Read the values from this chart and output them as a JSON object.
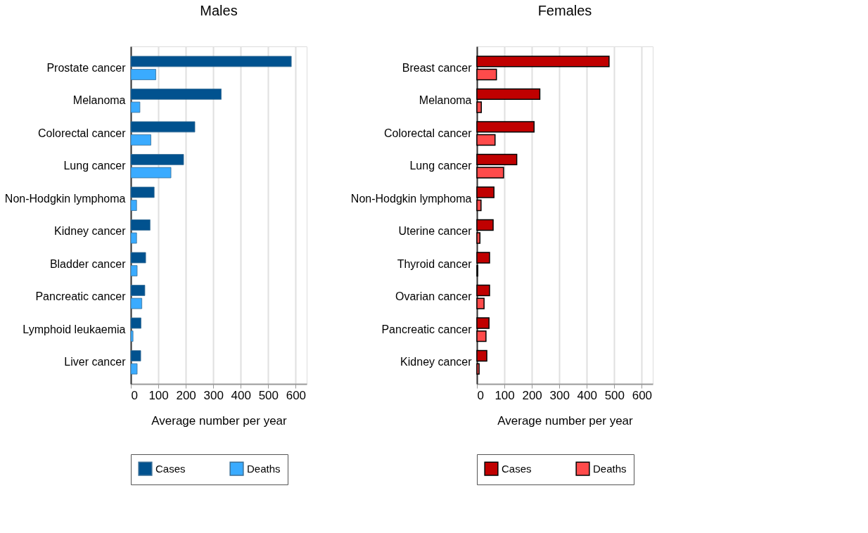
{
  "chart_data": [
    {
      "type": "bar",
      "title": "Males",
      "orientation": "horizontal",
      "xlabel": "Average number per year",
      "categories": [
        "Prostate cancer",
        "Melanoma",
        "Colorectal cancer",
        "Lung cancer",
        "Non-Hodgkin lymphoma",
        "Kidney cancer",
        "Bladder cancer",
        "Pancreatic cancer",
        "Lymphoid leukaemia",
        "Liver cancer"
      ],
      "series": [
        {
          "name": "Cases",
          "color": "#01528f",
          "values": [
            584,
            329,
            233,
            192,
            85,
            70,
            54,
            51,
            37,
            36
          ]
        },
        {
          "name": "Deaths",
          "color": "#3aabff",
          "values": [
            91,
            33,
            73,
            146,
            21,
            21,
            23,
            40,
            8,
            23
          ]
        }
      ],
      "xlim": [
        0,
        640
      ],
      "xticks": [
        0,
        100,
        200,
        300,
        400,
        500,
        600
      ],
      "grid": "x",
      "legend": "bottom"
    },
    {
      "type": "bar",
      "title": "Females",
      "orientation": "horizontal",
      "xlabel": "Average number per year",
      "categories": [
        "Breast cancer",
        "Melanoma",
        "Colorectal cancer",
        "Lung cancer",
        "Non-Hodgkin lymphoma",
        "Uterine cancer",
        "Thyroid cancer",
        "Ovarian cancer",
        "Pancreatic cancer",
        "Kidney cancer"
      ],
      "series": [
        {
          "name": "Cases",
          "color": "#c00000",
          "values": [
            481,
            229,
            208,
            145,
            62,
            59,
            46,
            46,
            44,
            36
          ]
        },
        {
          "name": "Deaths",
          "color": "#ff4b4b",
          "values": [
            71,
            16,
            66,
            97,
            15,
            11,
            3,
            26,
            33,
            8
          ]
        }
      ],
      "xlim": [
        0,
        640
      ],
      "xticks": [
        0,
        100,
        200,
        300,
        400,
        500,
        600
      ],
      "grid": "x",
      "legend": "bottom"
    }
  ]
}
